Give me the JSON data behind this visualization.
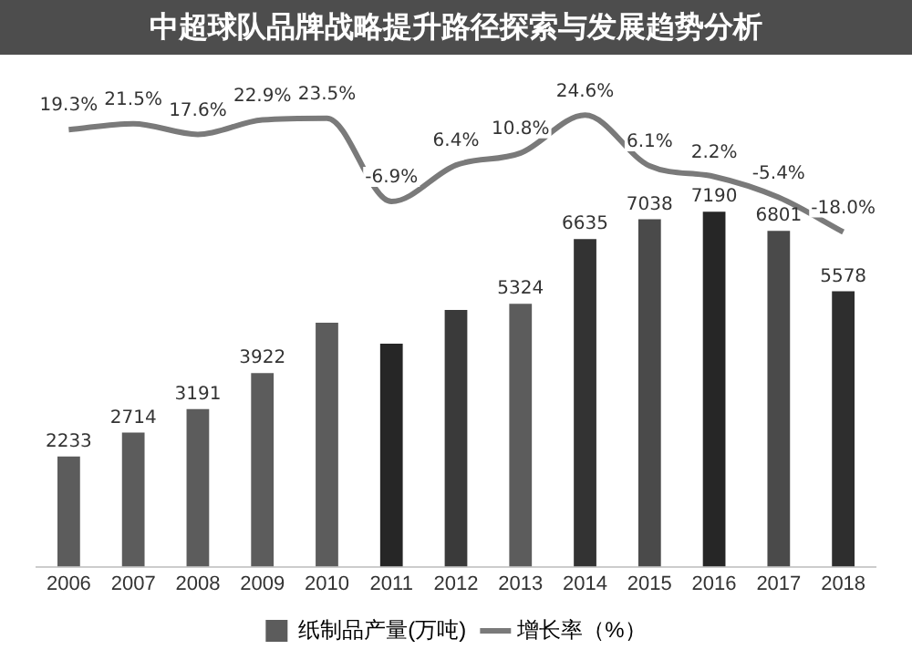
{
  "chart_data": {
    "type": "bar",
    "title": "中超球队品牌战略提升路径探索与发展趋势分析",
    "categories": [
      "2006",
      "2007",
      "2008",
      "2009",
      "2010",
      "2011",
      "2012",
      "2013",
      "2014",
      "2015",
      "2016",
      "2017",
      "2018"
    ],
    "series": [
      {
        "name": "纸制品产量(万吨)",
        "colors": [
          "#5c5c5c",
          "#5c5c5c",
          "#5c5c5c",
          "#5c5c5c",
          "#5c5c5c",
          "#262626",
          "#3a3a3a",
          "#5c5c5c",
          "#333333",
          "#4a4a4a",
          "#262626",
          "#4a4a4a",
          "#2e2e2e"
        ],
        "values": [
          2233,
          2714,
          3191,
          3922,
          4942,
          4515,
          5200,
          5324,
          6635,
          7038,
          7190,
          6801,
          5578
        ],
        "value_labels": [
          "2233",
          "2714",
          "3191",
          "3922",
          null,
          null,
          null,
          "5324",
          "6635",
          "7038",
          "7190",
          "6801",
          "5578"
        ]
      },
      {
        "name": "增长率（%）",
        "type": "line",
        "axis": "y2",
        "color": "#7a7a7a",
        "values": [
          19.3,
          21.5,
          17.6,
          22.9,
          23.5,
          -6.9,
          6.4,
          10.8,
          24.6,
          6.1,
          2.2,
          -5.4,
          -18.0
        ],
        "value_labels": [
          "19.3%",
          "21.5%",
          "17.6%",
          "22.9%",
          "23.5%",
          "-6.9%",
          "6.4%",
          "10.8%",
          "24.6%",
          "6.1%",
          "2.2%",
          "-5.4%",
          "-18.0%"
        ]
      }
    ],
    "legend": "bottom",
    "grid": false,
    "tick_labels": "x",
    "marker": "none"
  }
}
